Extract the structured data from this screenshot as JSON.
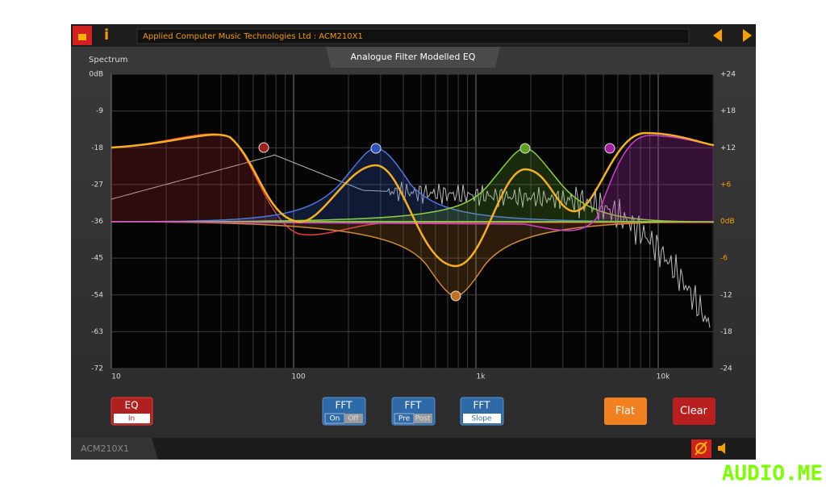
{
  "header": {
    "vendor_text": "Applied Computer Music Technologies Ltd  :  ACM210X1"
  },
  "panel": {
    "spectrum_label": "Spectrum",
    "title": "Analogue Filter Modelled EQ"
  },
  "left_axis": [
    "0dB",
    "-9",
    "-18",
    "-27",
    "-36",
    "-45",
    "-54",
    "-63",
    "-72"
  ],
  "right_axis": [
    "+24",
    "+18",
    "+12",
    "+6",
    "0dB",
    "-6",
    "-12",
    "-18",
    "-24"
  ],
  "freq_axis": [
    "10",
    "100",
    "1k",
    "10k"
  ],
  "buttons": [
    {
      "label": "EQ",
      "state": "In"
    },
    {
      "label": "FFT",
      "options": [
        "On",
        "Off"
      ]
    },
    {
      "label": "FFT",
      "options": [
        "Pre",
        "Post"
      ]
    },
    {
      "label": "FFT",
      "state": "Slope"
    },
    {
      "label": "Flat"
    },
    {
      "label": "Clear"
    }
  ],
  "footer": {
    "model": "ACM210X1"
  },
  "watermark": "AUDIO.ME"
}
